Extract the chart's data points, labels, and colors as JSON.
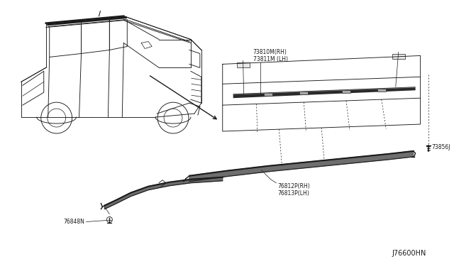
{
  "bg_color": "#ffffff",
  "line_color": "#1a1a1a",
  "diagram_code": "J76600HN",
  "label_73810": "73810M(RH)\n73811M (LH)",
  "label_73856": "73856J",
  "label_76812": "76812P(RH)\n76813P(LH)",
  "label_76848": "76848N",
  "font_size": 5.5,
  "code_font_size": 7.0
}
